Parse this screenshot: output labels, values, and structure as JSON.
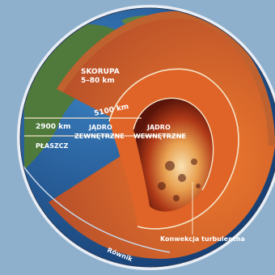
{
  "diagram": {
    "labels": {
      "crust_name": "SKORUPA",
      "crust_thickness": "5–80 km",
      "mantle_depth": "2900 km",
      "mantle_name": "PŁASZCZ",
      "outer_core_depth": "5100 km",
      "outer_core_line1": "JĄDRO",
      "outer_core_line2": "ZEWNĘTRZNE",
      "inner_core_line1": "JĄDRO",
      "inner_core_line2": "WEWNĘTRZNE",
      "convection": "Konwekcja turbulentna",
      "equator": "Równik"
    },
    "colors": {
      "background": "#8fb0cc",
      "ocean": "#1f4f8c",
      "land": "#4f7a3c",
      "crust": "#c0622f",
      "mantle": "#d2662d",
      "outer_core": "#e36a2b",
      "inner_core": "#7a1f10",
      "line": "#f4e4c8"
    }
  }
}
